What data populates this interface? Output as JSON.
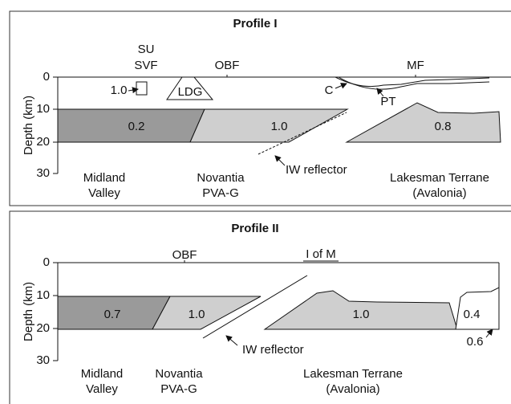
{
  "profiles": [
    {
      "title": "Profile I",
      "axis_label": "Depth (km)",
      "ticks": [
        "0",
        "10",
        "20",
        "30"
      ],
      "site_labels": [
        "SU",
        "SVF",
        "OBF",
        "MF"
      ],
      "unit_values": [
        "1.0",
        "0.2",
        "1.0",
        "0.8"
      ],
      "feature_labels": [
        "LDG",
        "C",
        "PT",
        "IW reflector"
      ],
      "regions": [
        [
          "Midland",
          "Valley"
        ],
        [
          "Novantia",
          "PVA-G"
        ],
        [
          "Lakesman Terrane",
          "(Avalonia)"
        ]
      ]
    },
    {
      "title": "Profile II",
      "axis_label": "Depth (km)",
      "ticks": [
        "0",
        "10",
        "20",
        "30"
      ],
      "site_labels": [
        "OBF",
        "I of M"
      ],
      "unit_values": [
        "0.7",
        "1.0",
        "1.0",
        "0.4",
        "0.6"
      ],
      "feature_labels": [
        "IW reflector"
      ],
      "regions": [
        [
          "Midland",
          "Valley"
        ],
        [
          "Novantia",
          "PVA-G"
        ],
        [
          "Lakesman Terrane",
          "(Avalonia)"
        ]
      ]
    }
  ]
}
